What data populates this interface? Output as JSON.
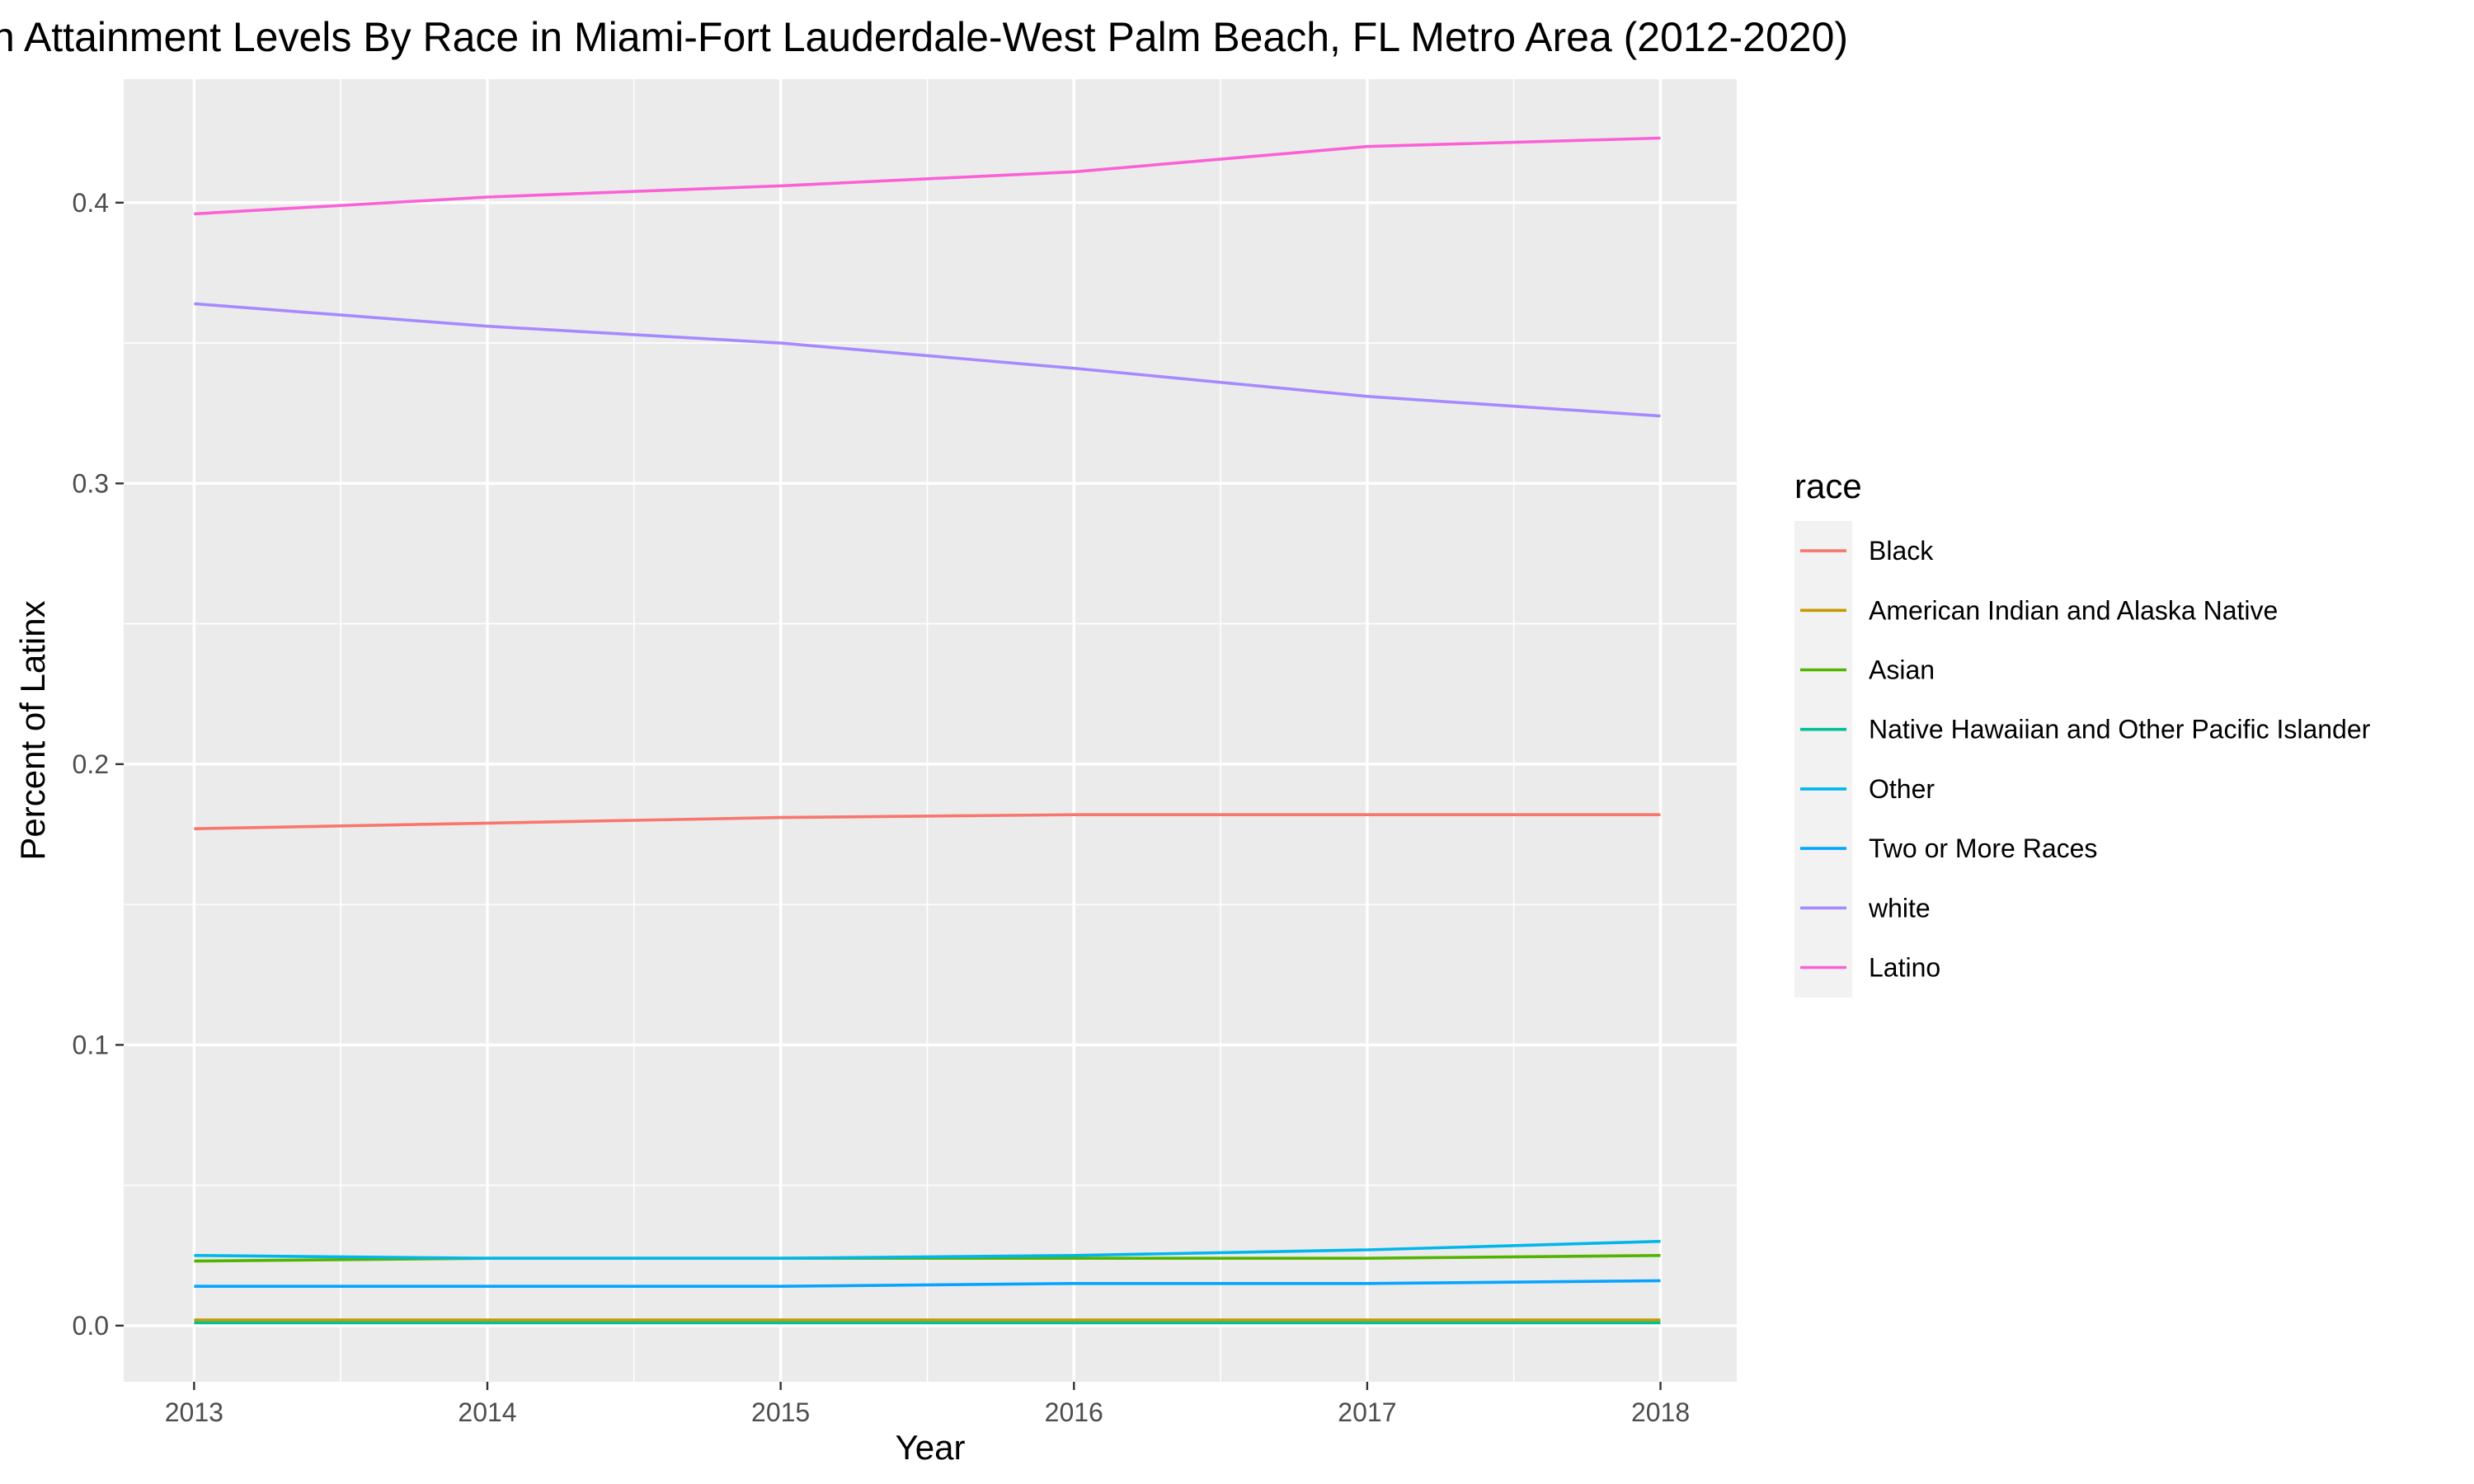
{
  "chart_data": {
    "type": "line",
    "title": "n Attainment Levels By Race in Miami-Fort Lauderdale-West Palm Beach, FL Metro Area (2012-2020)",
    "xlabel": "Year",
    "ylabel": "Percent of Latinx",
    "x": [
      2013,
      2014,
      2015,
      2016,
      2017,
      2018
    ],
    "x_tick_labels": [
      "2013",
      "2014",
      "2015",
      "2016",
      "2017",
      "2018"
    ],
    "y_ticks": [
      0.0,
      0.1,
      0.2,
      0.3,
      0.4
    ],
    "y_tick_labels": [
      "0.0",
      "0.1",
      "0.2",
      "0.3",
      "0.4"
    ],
    "xlim": [
      2012.76,
      2018.26
    ],
    "ylim": [
      -0.02,
      0.444
    ],
    "grid": true,
    "legend_title": "race",
    "legend_position": "right",
    "series": [
      {
        "name": "Black",
        "color": "#F8766D",
        "values": [
          0.177,
          0.179,
          0.181,
          0.182,
          0.182,
          0.182
        ]
      },
      {
        "name": "American Indian and Alaska Native",
        "color": "#C49A00",
        "values": [
          0.002,
          0.002,
          0.002,
          0.002,
          0.002,
          0.002
        ]
      },
      {
        "name": "Asian",
        "color": "#53B400",
        "values": [
          0.023,
          0.024,
          0.024,
          0.024,
          0.024,
          0.025
        ]
      },
      {
        "name": "Native Hawaiian and Other Pacific Islander",
        "color": "#00C094",
        "values": [
          0.001,
          0.001,
          0.001,
          0.001,
          0.001,
          0.001
        ]
      },
      {
        "name": "Other",
        "color": "#00B6EB",
        "values": [
          0.025,
          0.024,
          0.024,
          0.025,
          0.027,
          0.03
        ]
      },
      {
        "name": "Two or More Races",
        "color": "#06A4FF",
        "values": [
          0.014,
          0.014,
          0.014,
          0.015,
          0.015,
          0.016
        ]
      },
      {
        "name": "white",
        "color": "#A58AFF",
        "values": [
          0.364,
          0.356,
          0.35,
          0.341,
          0.331,
          0.324
        ]
      },
      {
        "name": "Latino",
        "color": "#FB61D7",
        "values": [
          0.396,
          0.402,
          0.406,
          0.411,
          0.42,
          0.423
        ]
      }
    ]
  }
}
